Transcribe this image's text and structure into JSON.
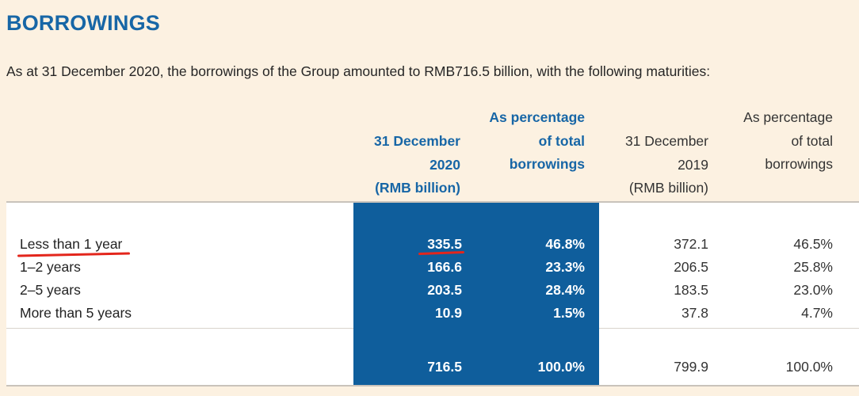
{
  "title": "BORROWINGS",
  "intro": "As at 31 December 2020, the borrowings of the Group amounted to RMB716.5 billion, with the following maturities:",
  "headers": {
    "col1": [
      "31 December",
      "2020",
      "(RMB billion)"
    ],
    "col2": [
      "As percentage",
      "of total",
      "borrowings"
    ],
    "col3": [
      "31 December",
      "2019",
      "(RMB billion)"
    ],
    "col4": [
      "As percentage",
      "of total",
      "borrowings"
    ]
  },
  "rows": [
    {
      "label": "Less than 1 year",
      "v2020": "335.5",
      "p2020": "46.8%",
      "v2019": "372.1",
      "p2019": "46.5%"
    },
    {
      "label": "1–2 years",
      "v2020": "166.6",
      "p2020": "23.3%",
      "v2019": "206.5",
      "p2019": "25.8%"
    },
    {
      "label": "2–5 years",
      "v2020": "203.5",
      "p2020": "28.4%",
      "v2019": "183.5",
      "p2019": "23.0%"
    },
    {
      "label": "More than 5 years",
      "v2020": "10.9",
      "p2020": "1.5%",
      "v2019": "37.8",
      "p2019": "4.7%"
    }
  ],
  "total": {
    "v2020": "716.5",
    "p2020": "100.0%",
    "v2019": "799.9",
    "p2019": "100.0%"
  },
  "colors": {
    "accent": "#1766a6",
    "highlight_column": "#0f5e9c",
    "annotation": "#e3261c",
    "background": "#fcf1e1"
  }
}
